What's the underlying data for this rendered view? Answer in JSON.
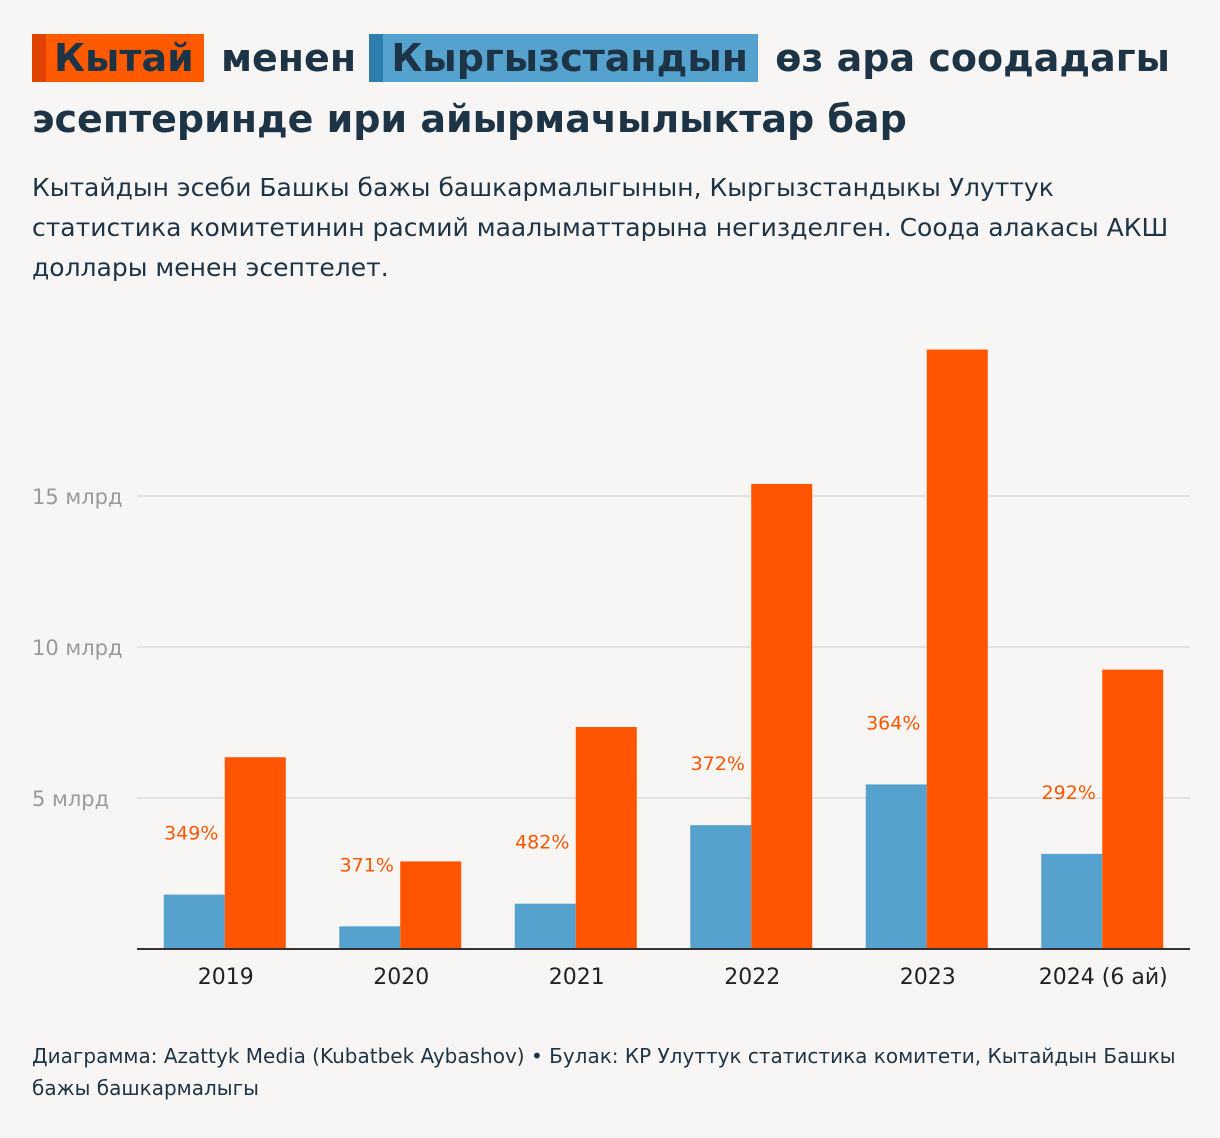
{
  "title": {
    "china": "Кытай",
    "middle": "менен",
    "kyrgyzstan": "Кыргызстандын",
    "rest": "өз ара соодадагы эсептеринде ири айырмачылыктар бар"
  },
  "subtitle": "Кытайдын эсеби Башкы бажы башкармалыгынын, Кыргызстандыкы Улуттук статистика комитетинин расмий маалыматтарына негизделген. Соода алакасы АКШ доллары менен эсептелет.",
  "footer": "Диаграмма: Azattyk Media (Kubatbek Aybashov) • Булак: КР Улуттук статистика комитети, Кытайдын Башкы бажы башкармалыгы",
  "colors": {
    "china": "#ff5500",
    "kyrgyzstan": "#55a2cf",
    "label": "#ff5500",
    "grid": "#dcdcdc",
    "axis": "#333333",
    "tick": "#9a9a9a"
  },
  "chart_data": {
    "type": "bar",
    "categories": [
      "2019",
      "2020",
      "2021",
      "2022",
      "2023",
      "2024 (6 ай)"
    ],
    "series": [
      {
        "name": "Кыргызстан",
        "values": [
          1.8,
          0.75,
          1.5,
          4.1,
          5.45,
          3.15
        ]
      },
      {
        "name": "Кытай",
        "values": [
          6.35,
          2.9,
          7.35,
          15.4,
          19.85,
          9.25
        ]
      }
    ],
    "difference_labels": [
      "349%",
      "371%",
      "482%",
      "372%",
      "364%",
      "292%"
    ],
    "y_ticks": [
      {
        "value": 5,
        "label": "5 млрд"
      },
      {
        "value": 10,
        "label": "10 млрд"
      },
      {
        "value": 15,
        "label": "15 млрд"
      }
    ],
    "ylim": [
      0,
      21
    ],
    "xlabel": "",
    "ylabel": "",
    "grid": true
  }
}
